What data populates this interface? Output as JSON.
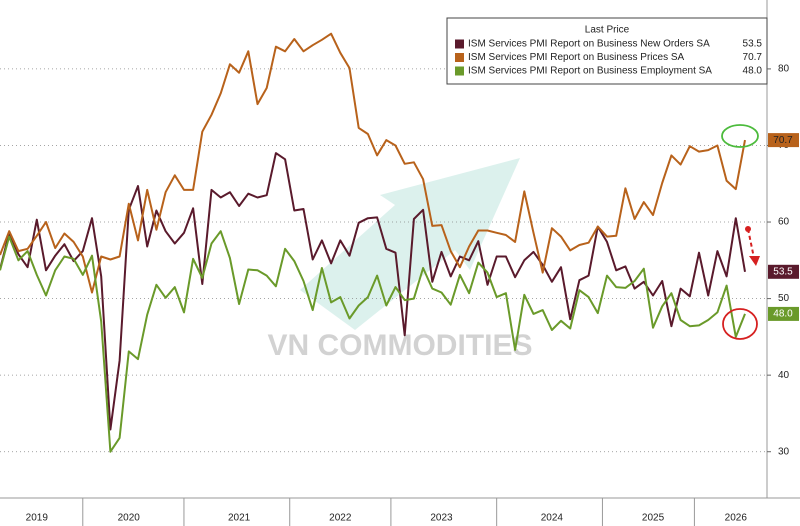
{
  "chart_data": {
    "type": "line",
    "legend_title": "Last Price",
    "watermark": "VN COMMODITIES",
    "categories": [
      null,
      null,
      null,
      null,
      "2019",
      null,
      null,
      null,
      null,
      null,
      null,
      null,
      null,
      null,
      "2020",
      null,
      null,
      null,
      null,
      null,
      null,
      null,
      null,
      null,
      null,
      null,
      "2021",
      null,
      null,
      null,
      null,
      null,
      null,
      null,
      null,
      null,
      null,
      "2022",
      null,
      null,
      null,
      null,
      null,
      null,
      null,
      null,
      null,
      null,
      "2023",
      null,
      null,
      null,
      null,
      null,
      null,
      null,
      null,
      null,
      null,
      null,
      "2024",
      null,
      null,
      null,
      null,
      null,
      null,
      null,
      null,
      null,
      null,
      "2025",
      null,
      null,
      null,
      null,
      null,
      null,
      null,
      null,
      "2026",
      null
    ],
    "ylim": [
      25,
      89
    ],
    "yticks": [
      30,
      40,
      50,
      60,
      70,
      80
    ],
    "grid": true,
    "legend": "upper right",
    "series": [
      {
        "name": "ISM Services PMI Report on Business New Orders SA",
        "color": "#5a1a2c",
        "values": [
          53.8,
          58.6,
          55.8,
          54.1,
          60.3,
          53.7,
          55.6,
          57.1,
          54.9,
          56.2,
          60.5,
          52.9,
          32.9,
          41.9,
          61.6,
          64.7,
          56.8,
          61.5,
          58.8,
          57.2,
          58.6,
          61.8,
          51.9,
          64.2,
          63.2,
          63.9,
          62.1,
          63.7,
          63.2,
          63.5,
          69.0,
          68.2,
          61.5,
          61.7,
          55.1,
          57.6,
          54.6,
          57.6,
          55.6,
          59.9,
          60.5,
          60.6,
          56.5,
          56.0,
          45.2,
          60.4,
          61.6,
          52.2,
          56.1,
          52.9,
          55.5,
          55.0,
          57.5,
          51.8,
          55.5,
          55.5,
          52.8,
          55.0,
          56.1,
          54.4,
          52.2,
          54.1,
          47.3,
          52.4,
          53.0,
          59.4,
          57.4,
          53.7,
          54.2,
          51.3,
          52.2,
          50.4,
          52.3,
          46.4,
          51.3,
          50.3,
          56.0,
          50.4,
          56.2,
          52.9,
          60.5,
          53.5
        ],
        "value_labels": [
          null,
          null,
          null,
          null,
          null,
          null,
          null,
          null,
          null,
          null,
          null,
          null,
          null,
          null,
          null,
          null,
          null,
          null,
          null,
          null,
          null,
          null,
          null,
          null,
          null,
          null,
          null,
          null,
          null,
          null,
          null,
          null,
          null,
          null,
          null,
          null,
          null,
          null,
          null,
          null,
          null,
          null,
          null,
          null,
          null,
          null,
          null,
          null,
          null,
          null,
          null,
          null,
          null,
          null,
          null,
          null,
          null,
          null,
          null,
          null,
          null,
          null,
          null,
          null,
          null,
          null,
          null,
          null,
          null,
          null,
          null,
          null,
          null,
          null,
          null,
          null,
          null,
          null,
          null,
          null,
          null,
          "53.5"
        ]
      },
      {
        "name": "ISM Services PMI Report on Business Prices SA",
        "color": "#b8621b",
        "values": [
          55.7,
          58.8,
          56.2,
          56.5,
          58.2,
          60.0,
          56.6,
          58.5,
          57.4,
          55.5,
          50.8,
          55.5,
          55.1,
          55.5,
          62.4,
          57.6,
          64.2,
          59.0,
          63.9,
          66.1,
          64.2,
          64.2,
          71.8,
          74.0,
          76.8,
          80.6,
          79.5,
          82.3,
          75.4,
          77.5,
          82.9,
          82.3,
          83.9,
          82.3,
          83.1,
          83.8,
          84.6,
          82.1,
          80.1,
          72.3,
          71.5,
          68.7,
          70.7,
          70.0,
          67.6,
          67.8,
          65.6,
          59.5,
          59.6,
          56.2,
          54.1,
          56.8,
          58.9,
          58.9,
          58.6,
          58.3,
          57.4,
          64.0,
          58.6,
          53.4,
          59.2,
          58.1,
          56.3,
          57.0,
          57.3,
          59.4,
          58.1,
          58.2,
          64.4,
          60.4,
          62.6,
          60.9,
          65.1,
          68.7,
          67.5,
          69.9,
          69.2,
          69.4,
          70.0,
          65.4,
          64.3,
          70.7
        ],
        "value_labels": [
          null,
          null,
          null,
          null,
          null,
          null,
          null,
          null,
          null,
          null,
          null,
          null,
          null,
          null,
          null,
          null,
          null,
          null,
          null,
          null,
          null,
          null,
          null,
          null,
          null,
          null,
          null,
          null,
          null,
          null,
          null,
          null,
          null,
          null,
          null,
          null,
          null,
          null,
          null,
          null,
          null,
          null,
          null,
          null,
          null,
          null,
          null,
          null,
          null,
          null,
          null,
          null,
          null,
          null,
          null,
          null,
          null,
          null,
          null,
          null,
          null,
          null,
          null,
          null,
          null,
          null,
          null,
          null,
          null,
          null,
          null,
          null,
          null,
          null,
          null,
          null,
          null,
          null,
          null,
          null,
          null,
          "70.7"
        ]
      },
      {
        "name": "ISM Services PMI Report on Business Employment SA",
        "color": "#6a9a2a",
        "values": [
          53.7,
          58.1,
          55.0,
          56.2,
          53.1,
          50.4,
          53.7,
          55.5,
          55.2,
          53.1,
          55.6,
          47.0,
          30.0,
          31.8,
          43.1,
          42.1,
          47.9,
          51.8,
          50.1,
          51.5,
          48.2,
          55.2,
          52.7,
          57.2,
          58.8,
          55.3,
          49.3,
          53.8,
          53.7,
          53.0,
          51.6,
          56.5,
          54.9,
          52.3,
          48.5,
          54.0,
          49.5,
          50.2,
          47.4,
          49.1,
          50.2,
          53.0,
          49.1,
          51.5,
          49.8,
          50.0,
          54.0,
          51.3,
          50.8,
          49.2,
          53.1,
          50.7,
          54.7,
          53.4,
          50.2,
          50.7,
          43.3,
          50.5,
          48.0,
          48.5,
          45.9,
          47.1,
          46.1,
          51.1,
          50.2,
          48.1,
          53.0,
          51.5,
          51.4,
          52.3,
          53.9,
          46.2,
          49.0,
          50.7,
          47.2,
          46.4,
          46.5,
          47.2,
          48.2,
          51.7,
          45.0,
          48.0
        ],
        "value_labels": [
          null,
          null,
          null,
          null,
          null,
          null,
          null,
          null,
          null,
          null,
          null,
          null,
          null,
          null,
          null,
          null,
          null,
          null,
          null,
          null,
          null,
          null,
          null,
          null,
          null,
          null,
          null,
          null,
          null,
          null,
          null,
          null,
          null,
          null,
          null,
          null,
          null,
          null,
          null,
          null,
          null,
          null,
          null,
          null,
          null,
          null,
          null,
          null,
          null,
          null,
          null,
          null,
          null,
          null,
          null,
          null,
          null,
          null,
          null,
          null,
          null,
          null,
          null,
          null,
          null,
          null,
          null,
          null,
          null,
          null,
          null,
          null,
          null,
          null,
          null,
          null,
          null,
          null,
          null,
          null,
          null,
          "48.0"
        ]
      }
    ]
  }
}
